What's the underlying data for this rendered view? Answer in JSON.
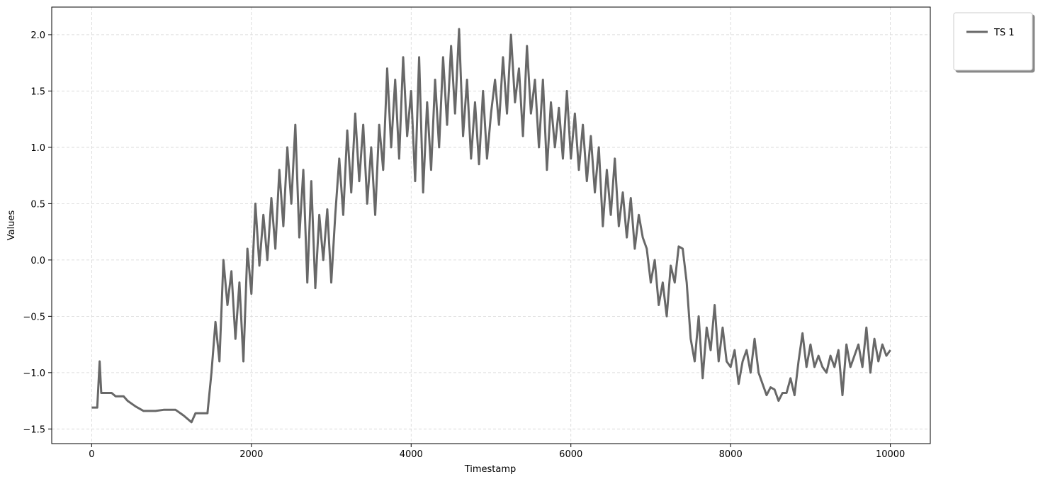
{
  "chart_data": {
    "type": "line",
    "xlabel": "Timestamp",
    "ylabel": "Values",
    "xlim": [
      -500,
      10500
    ],
    "ylim": [
      -1.63,
      2.245
    ],
    "xticks": [
      0,
      2000,
      4000,
      6000,
      8000,
      10000
    ],
    "yticks": [
      {
        "value": -1.5,
        "label": "−1.5"
      },
      {
        "value": -1.0,
        "label": "−1.0"
      },
      {
        "value": -0.5,
        "label": "−0.5"
      },
      {
        "value": 0.0,
        "label": "0.0"
      },
      0.5,
      {
        "value": 1.0,
        "label": "1.0"
      },
      1.5,
      {
        "value": 2.0,
        "label": "2.0"
      }
    ],
    "grid": true,
    "legend": "outside upper right",
    "x": [
      0,
      70,
      100,
      120,
      250,
      300,
      400,
      450,
      550,
      650,
      800,
      900,
      1050,
      1150,
      1250,
      1300,
      1450,
      1500,
      1550,
      1600,
      1650,
      1700,
      1750,
      1800,
      1850,
      1900,
      1950,
      2000,
      2050,
      2100,
      2150,
      2200,
      2250,
      2300,
      2350,
      2400,
      2450,
      2500,
      2550,
      2600,
      2650,
      2700,
      2750,
      2800,
      2850,
      2900,
      2950,
      3000,
      3050,
      3100,
      3150,
      3200,
      3250,
      3300,
      3350,
      3400,
      3450,
      3500,
      3550,
      3600,
      3650,
      3700,
      3750,
      3800,
      3850,
      3900,
      3950,
      4000,
      4050,
      4100,
      4150,
      4200,
      4250,
      4300,
      4350,
      4400,
      4450,
      4500,
      4550,
      4600,
      4650,
      4700,
      4750,
      4800,
      4850,
      4900,
      4950,
      5000,
      5050,
      5100,
      5150,
      5200,
      5250,
      5300,
      5350,
      5400,
      5450,
      5500,
      5550,
      5600,
      5650,
      5700,
      5750,
      5800,
      5850,
      5900,
      5950,
      6000,
      6050,
      6100,
      6150,
      6200,
      6250,
      6300,
      6350,
      6400,
      6450,
      6500,
      6550,
      6600,
      6650,
      6700,
      6750,
      6800,
      6850,
      6900,
      6950,
      7000,
      7050,
      7100,
      7150,
      7200,
      7250,
      7300,
      7350,
      7400,
      7450,
      7500,
      7550,
      7600,
      7650,
      7700,
      7750,
      7800,
      7850,
      7900,
      7950,
      8000,
      8050,
      8100,
      8150,
      8200,
      8250,
      8300,
      8350,
      8400,
      8450,
      8500,
      8550,
      8600,
      8650,
      8700,
      8750,
      8800,
      8850,
      8900,
      8950,
      9000,
      9050,
      9100,
      9150,
      9200,
      9250,
      9300,
      9350,
      9400,
      9450,
      9500,
      9550,
      9600,
      9650,
      9700,
      9750,
      9800,
      9850,
      9900,
      9950,
      10000
    ],
    "series": [
      {
        "name": "TS 1",
        "color": "#686868",
        "values": [
          -1.31,
          -1.31,
          -0.9,
          -1.18,
          -1.18,
          -1.21,
          -1.21,
          -1.25,
          -1.3,
          -1.34,
          -1.34,
          -1.33,
          -1.33,
          -1.38,
          -1.44,
          -1.36,
          -1.36,
          -1.0,
          -0.55,
          -0.9,
          0.0,
          -0.4,
          -0.1,
          -0.7,
          -0.2,
          -0.9,
          0.1,
          -0.3,
          0.5,
          -0.05,
          0.4,
          0.0,
          0.55,
          0.1,
          0.8,
          0.3,
          1.0,
          0.5,
          1.2,
          0.2,
          0.8,
          -0.2,
          0.7,
          -0.25,
          0.4,
          0.0,
          0.45,
          -0.2,
          0.4,
          0.9,
          0.4,
          1.15,
          0.6,
          1.3,
          0.7,
          1.2,
          0.5,
          1.0,
          0.4,
          1.2,
          0.8,
          1.7,
          1.0,
          1.6,
          0.9,
          1.8,
          1.1,
          1.5,
          0.7,
          1.8,
          0.6,
          1.4,
          0.8,
          1.6,
          1.0,
          1.8,
          1.2,
          1.9,
          1.3,
          2.05,
          1.1,
          1.6,
          0.9,
          1.4,
          0.85,
          1.5,
          0.9,
          1.3,
          1.6,
          1.2,
          1.8,
          1.3,
          2.0,
          1.4,
          1.7,
          1.1,
          1.9,
          1.3,
          1.6,
          1.0,
          1.6,
          0.8,
          1.4,
          1.0,
          1.35,
          0.9,
          1.5,
          0.9,
          1.3,
          0.8,
          1.2,
          0.7,
          1.1,
          0.6,
          1.0,
          0.3,
          0.8,
          0.4,
          0.9,
          0.3,
          0.6,
          0.2,
          0.55,
          0.1,
          0.4,
          0.2,
          0.1,
          -0.2,
          0.0,
          -0.4,
          -0.2,
          -0.5,
          -0.05,
          -0.2,
          0.12,
          0.1,
          -0.2,
          -0.7,
          -0.9,
          -0.5,
          -1.05,
          -0.6,
          -0.8,
          -0.4,
          -0.9,
          -0.6,
          -0.9,
          -0.95,
          -0.8,
          -1.1,
          -0.9,
          -0.8,
          -1.0,
          -0.7,
          -1.0,
          -1.1,
          -1.2,
          -1.13,
          -1.15,
          -1.25,
          -1.18,
          -1.18,
          -1.05,
          -1.2,
          -0.9,
          -0.65,
          -0.95,
          -0.75,
          -0.95,
          -0.85,
          -0.95,
          -1.0,
          -0.85,
          -0.95,
          -0.8,
          -1.2,
          -0.75,
          -0.95,
          -0.85,
          -0.75,
          -0.95,
          -0.6,
          -1.0,
          -0.7,
          -0.9,
          -0.75,
          -0.85,
          -0.8
        ]
      }
    ]
  }
}
